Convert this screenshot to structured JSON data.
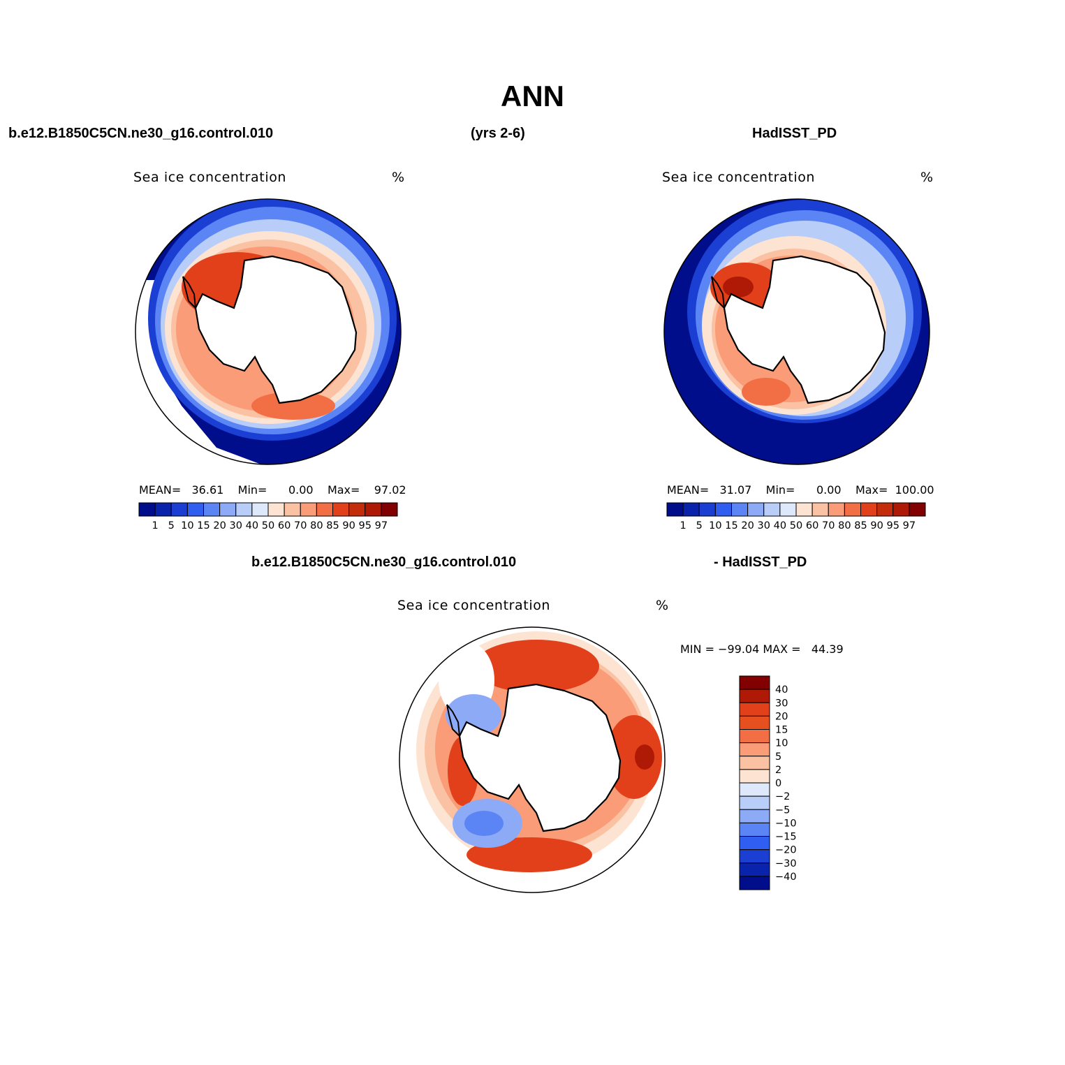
{
  "page": {
    "title": "ANN",
    "case_name": "b.e12.B1850C5CN.ne30_g16.control.010",
    "years": "(yrs 2-6)",
    "obs_name": "HadISST_PD",
    "diff_case_name": "b.e12.B1850C5CN.ne30_g16.control.010",
    "diff_obs_name": "- HadISST_PD"
  },
  "panels": {
    "model": {
      "variable": "Sea ice concentration",
      "units": "%",
      "mean_label": "MEAN=",
      "mean_value": "36.61",
      "min_label": "Min=",
      "min_value": "0.00",
      "max_label": "Max=",
      "max_value": "97.02"
    },
    "obs": {
      "variable": "Sea ice concentration",
      "units": "%",
      "mean_label": "MEAN=",
      "mean_value": "31.07",
      "min_label": "Min=",
      "min_value": "0.00",
      "max_label": "Max=",
      "max_value": "100.00"
    },
    "diff": {
      "variable": "Sea ice concentration",
      "units": "%",
      "min_max_text": "MIN = −99.04 MAX =   44.39"
    }
  },
  "colorbars": {
    "abs_levels": [
      "1",
      "5",
      "10",
      "15",
      "20",
      "30",
      "40",
      "50",
      "60",
      "70",
      "80",
      "85",
      "90",
      "95",
      "97"
    ],
    "abs_colors": [
      "#000e8c",
      "#0a23ad",
      "#1a3fd2",
      "#2f5ef0",
      "#5b85f5",
      "#8daaf7",
      "#b8cdf8",
      "#dde8fb",
      "#fde4d2",
      "#fbc1a3",
      "#f99c77",
      "#f26e45",
      "#e1401b",
      "#c42d0b",
      "#ae1a05",
      "#820000"
    ],
    "diff_levels": [
      "40",
      "30",
      "20",
      "15",
      "10",
      "5",
      "2",
      "0",
      "−2",
      "−5",
      "−10",
      "−15",
      "−20",
      "−30",
      "−40"
    ],
    "diff_colors": [
      "#820000",
      "#ae1a05",
      "#e1401b",
      "#e6501f",
      "#f26e45",
      "#f99c77",
      "#fbc1a3",
      "#fde4d2",
      "#dde8fb",
      "#b8cdf8",
      "#8daaf7",
      "#5b85f5",
      "#2f5ef0",
      "#1a3fd2",
      "#0a23ad",
      "#000e8c"
    ]
  },
  "map_fills": {
    "land": "#ffffff",
    "coast": "#000000",
    "model_rings": [
      "#000e8c",
      "#1a3fd2",
      "#5b85f5",
      "#b8cdf8",
      "#fde4d2",
      "#f99c77",
      "#e1401b"
    ],
    "obs_rings": [
      "#000e8c",
      "#1a3fd2",
      "#5b85f5",
      "#b8cdf8",
      "#fde4d2",
      "#f99c77",
      "#e1401b"
    ],
    "diff_rings": [
      "#fde4d2",
      "#fbc1a3",
      "#f99c77",
      "#e1401b"
    ],
    "diff_negative": [
      "#8daaf7",
      "#5b85f5"
    ]
  }
}
